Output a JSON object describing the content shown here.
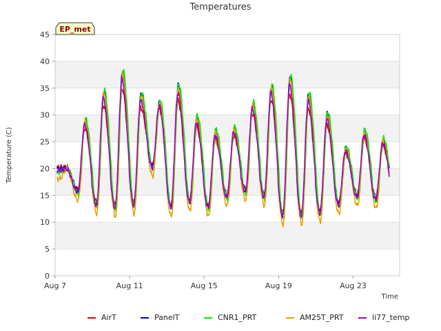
{
  "chart_data": {
    "type": "line",
    "title": "Temperatures",
    "xlabel": "Time",
    "ylabel": "Temperature (C)",
    "badge": "EP_met",
    "xlim": [
      7.0,
      25.5
    ],
    "ylim": [
      0,
      45
    ],
    "yticks": [
      0,
      5,
      10,
      15,
      20,
      25,
      30,
      35,
      40,
      45
    ],
    "xticks": [
      {
        "day": 7,
        "label": "Aug 7"
      },
      {
        "day": 11,
        "label": "Aug 11"
      },
      {
        "day": 15,
        "label": "Aug 15"
      },
      {
        "day": 19,
        "label": "Aug 19"
      },
      {
        "day": 23,
        "label": "Aug 23"
      }
    ],
    "daily": {
      "days": [
        7,
        8,
        9,
        10,
        11,
        12,
        13,
        14,
        15,
        16,
        17,
        18,
        19,
        20,
        21,
        22,
        23,
        24,
        25
      ],
      "mins": [
        19.5,
        15.5,
        13,
        12.5,
        13,
        20,
        12.5,
        13.5,
        12.5,
        14.5,
        15.5,
        14.5,
        11,
        11,
        11.5,
        13,
        14.5,
        14,
        14.5
      ],
      "maxs": [
        20,
        28.5,
        33.5,
        37,
        33,
        32,
        34.5,
        29,
        26.5,
        27,
        31.5,
        34.5,
        36,
        33,
        29.5,
        23.5,
        26.5,
        25,
        0
      ]
    },
    "series": [
      {
        "name": "AirT",
        "color": "#dd0000",
        "scale": 0.9,
        "offset": 0.3,
        "minShift": 0.7,
        "shift": 0.02
      },
      {
        "name": "PanelT",
        "color": "#0000cc",
        "scale": 1.05,
        "offset": 0.0,
        "minShift": 0.4,
        "shift": 0.0
      },
      {
        "name": "CNR1_PRT",
        "color": "#00ee00",
        "scale": 1.06,
        "offset": 0.0,
        "minShift": -0.2,
        "shift": -0.02
      },
      {
        "name": "AM25T_PRT",
        "color": "#e8a000",
        "scale": 1.02,
        "offset": 0.0,
        "minShift": -1.4,
        "shift": 0.01
      },
      {
        "name": "li77_temp",
        "color": "#9900cc",
        "scale": 0.98,
        "offset": 0.0,
        "minShift": 0.2,
        "shift": 0.03
      }
    ]
  }
}
